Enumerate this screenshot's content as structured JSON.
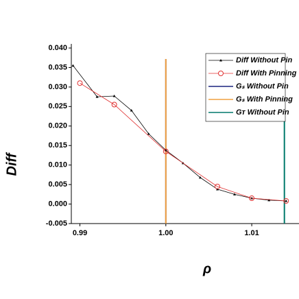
{
  "chart_data": {
    "type": "line",
    "ylabel": "Diff",
    "xlabel": "ρ",
    "xlim": [
      0.989,
      1.0155
    ],
    "ylim": [
      -0.005,
      0.04
    ],
    "xticks": [
      0.99,
      {
        "value": 1.0,
        "label": "1.00"
      },
      1.01
    ],
    "yticks": [
      {
        "value": -0.005,
        "label": "-0.005"
      },
      {
        "value": 0.0,
        "label": "0.000"
      },
      {
        "value": 0.005,
        "label": "0.005"
      },
      {
        "value": 0.01,
        "label": "0.010"
      },
      {
        "value": 0.015,
        "label": "0.015"
      },
      {
        "value": 0.02,
        "label": "0.020"
      },
      {
        "value": 0.025,
        "label": "0.025"
      },
      {
        "value": 0.03,
        "label": "0.030"
      },
      {
        "value": 0.035,
        "label": "0.035"
      },
      {
        "value": 0.04,
        "label": "0.040"
      }
    ],
    "series": [
      {
        "name": "Diff Without Pin",
        "color": "#000000",
        "marker": "triangle",
        "x": [
          0.9892,
          0.992,
          0.994,
          0.996,
          0.998,
          1.0,
          1.002,
          1.004,
          1.006,
          1.008,
          1.01,
          1.012,
          1.014
        ],
        "values": [
          0.0355,
          0.0275,
          0.0277,
          0.024,
          0.018,
          0.0138,
          0.0105,
          0.0068,
          0.0038,
          0.0025,
          0.0015,
          0.001,
          0.0008
        ]
      },
      {
        "name": "Diff With Pinning",
        "color": "#e03030",
        "marker": "circle",
        "x": [
          0.99,
          0.994,
          1.0,
          1.006,
          1.01,
          1.014
        ],
        "values": [
          0.031,
          0.0255,
          0.0135,
          0.0045,
          0.0015,
          0.0008
        ]
      }
    ],
    "vlines": [
      {
        "name": "Gₛ Without Pin",
        "color": "#1a237e",
        "x": 1.0
      },
      {
        "name": "Gₛ With Pinning",
        "color": "#f0a040",
        "x": 1.0
      },
      {
        "name": "Gᴛ Without Pin",
        "color": "#00796b",
        "x": 1.0138
      }
    ]
  }
}
